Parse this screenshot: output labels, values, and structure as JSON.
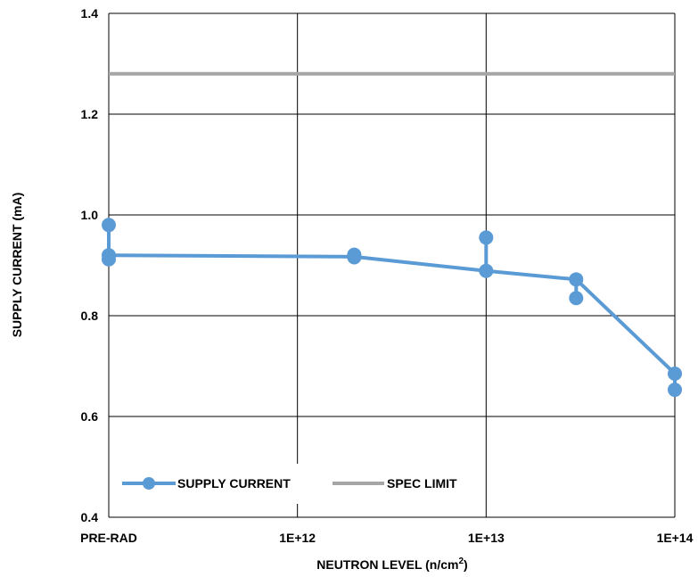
{
  "chart_data": {
    "type": "line",
    "xlabel": "NEUTRON LEVEL (n/cm",
    "xlabel_sup": "2",
    "xlabel_end": ")",
    "ylabel": "SUPPLY CURRENT (mA)",
    "x_scale": "log",
    "x_tick_labels": [
      "PRE-RAD",
      "1E+12",
      "1E+13",
      "1E+14"
    ],
    "ylim": [
      0.4,
      1.4
    ],
    "y_ticks": [
      "0.4",
      "0.6",
      "0.8",
      "1.0",
      "1.2",
      "1.4"
    ],
    "grid": true,
    "legend_position": "bottom-left",
    "series": [
      {
        "name": "SUPPLY CURRENT",
        "color": "#5b9bd5",
        "line": [
          {
            "x": "PRE-RAD",
            "y": 0.92
          },
          {
            "x": "2E+12",
            "y": 0.917
          },
          {
            "x": "1E+13",
            "y": 0.889
          },
          {
            "x": "3E+13",
            "y": 0.872
          },
          {
            "x": "1E+14",
            "y": 0.685
          }
        ],
        "points": [
          {
            "x": "PRE-RAD",
            "y": 0.98
          },
          {
            "x": "PRE-RAD",
            "y": 0.92
          },
          {
            "x": "PRE-RAD",
            "y": 0.912
          },
          {
            "x": "2E+12",
            "y": 0.921
          },
          {
            "x": "2E+12",
            "y": 0.916
          },
          {
            "x": "1E+13",
            "y": 0.955
          },
          {
            "x": "1E+13",
            "y": 0.889
          },
          {
            "x": "3E+13",
            "y": 0.872
          },
          {
            "x": "3E+13",
            "y": 0.835
          },
          {
            "x": "1E+14",
            "y": 0.685
          },
          {
            "x": "1E+14",
            "y": 0.653
          }
        ]
      },
      {
        "name": "SPEC LIMIT",
        "color": "#a6a6a6",
        "value": 1.28
      }
    ]
  }
}
